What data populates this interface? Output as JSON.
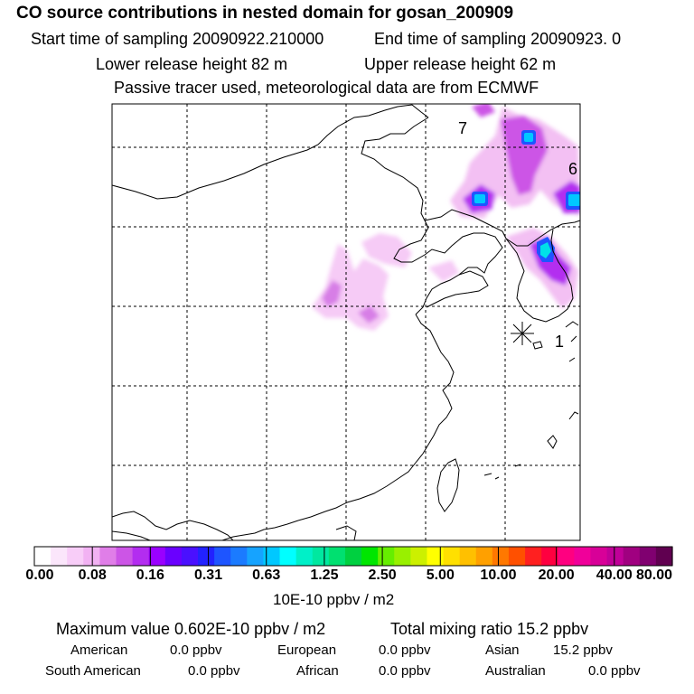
{
  "header": {
    "title": "CO  source contributions in nested domain for gosan_200909",
    "start_time": "Start time of sampling 20090922.210000",
    "end_time": "End time of sampling 20090923.     0",
    "lower_height": "Lower release height   82 m",
    "upper_height": "Upper release height   62 m",
    "note": "Passive tracer used, meteorological data are from ECMWF"
  },
  "map": {
    "markers": {
      "m7": "7",
      "m6": "6",
      "m1": "1"
    }
  },
  "colorbar": {
    "ticks": [
      "0.00",
      "0.08",
      "0.16",
      "0.31",
      "0.63",
      "1.25",
      "2.50",
      "5.00",
      "10.00",
      "20.00",
      "40.00",
      "80.00"
    ],
    "unit": "10E-10 ppbv / m2",
    "colors": [
      "#ffffff",
      "#fbe6fb",
      "#f8cdf8",
      "#f2b2f3",
      "#e07ee8",
      "#cc55e6",
      "#b32df0",
      "#9a00ff",
      "#6a00ff",
      "#4a10ff",
      "#2222ff",
      "#1e55ff",
      "#1b7bff",
      "#16a3ff",
      "#00c8ff",
      "#00ffff",
      "#00f0c8",
      "#00e8a0",
      "#00e070",
      "#00d040",
      "#00e600",
      "#66ee00",
      "#99f000",
      "#ccf000",
      "#ffff00",
      "#ffe000",
      "#ffc000",
      "#ffa000",
      "#ff7800",
      "#ff5000",
      "#ff2020",
      "#ff0040",
      "#ff0080",
      "#f0009a",
      "#d80098",
      "#c00098",
      "#a00080",
      "#800070",
      "#600050"
    ]
  },
  "stats": {
    "max_value": "Maximum value  0.602E-10 ppbv / m2",
    "total_mixing": "Total mixing ratio       15.2 ppbv",
    "american": "American",
    "american_val": "0.0 ppbv",
    "european": "European",
    "european_val": "0.0 ppbv",
    "asian": "Asian",
    "asian_val": "15.2 ppbv",
    "south_american": "South American",
    "south_american_val": "0.0 ppbv",
    "african": "African",
    "african_val": "0.0 ppbv",
    "australian": "Australian",
    "australian_val": "0.0 ppbv"
  }
}
